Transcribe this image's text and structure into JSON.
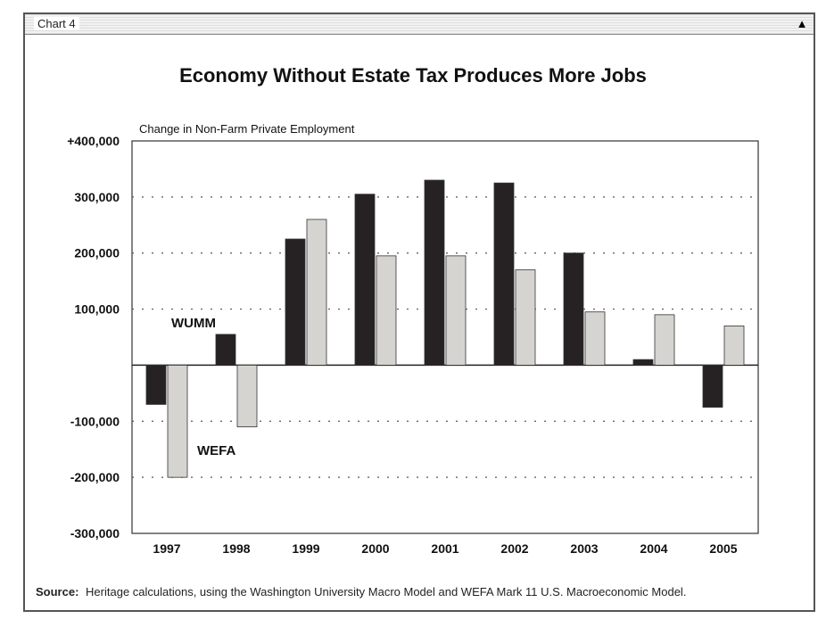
{
  "window": {
    "tab_label": "Chart 4",
    "corner_icon": "pin-icon"
  },
  "source": {
    "label": "Source:",
    "text": "Heritage calculations, using the Washington University Macro Model and WEFA Mark 11 U.S. Macroeconomic Model."
  },
  "chart_data": {
    "type": "bar",
    "title": "Economy Without Estate Tax Produces More Jobs",
    "ylabel": "Change in Non-Farm Private Employment",
    "xlabel": "",
    "categories": [
      "1997",
      "1998",
      "1999",
      "2000",
      "2001",
      "2002",
      "2003",
      "2004",
      "2005"
    ],
    "series": [
      {
        "name": "WUMM",
        "color": "#262123",
        "values": [
          -70000,
          55000,
          225000,
          305000,
          330000,
          325000,
          200000,
          10000,
          -75000
        ]
      },
      {
        "name": "WEFA",
        "color": "#d6d4d0",
        "values": [
          -200000,
          -110000,
          260000,
          195000,
          195000,
          170000,
          95000,
          90000,
          70000
        ]
      }
    ],
    "ylim": [
      -300000,
      400000
    ],
    "yticks": [
      400000,
      300000,
      200000,
      100000,
      -100000,
      -200000,
      -300000
    ],
    "ytick_labels": [
      "+400,000",
      "300,000",
      "200,000",
      "100,000",
      "-100,000",
      "-200,000",
      "-300,000"
    ],
    "grid": true
  }
}
